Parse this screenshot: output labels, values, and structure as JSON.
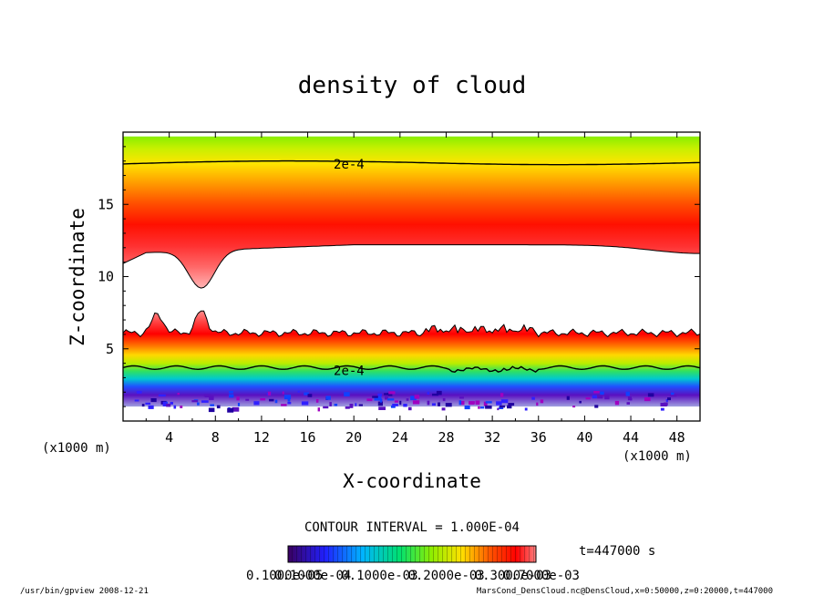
{
  "chart_data": {
    "type": "heatmap",
    "title": "density of cloud",
    "xlabel": "X-coordinate",
    "ylabel": "Z-coordinate",
    "x_unit": "(x1000 m)",
    "y_unit": "(x1000 m)",
    "xlim": [
      0,
      50
    ],
    "ylim": [
      0,
      20
    ],
    "x_ticks": [
      4,
      8,
      12,
      16,
      20,
      24,
      28,
      32,
      36,
      40,
      44,
      48
    ],
    "y_ticks": [
      5,
      10,
      15
    ],
    "contour_labels": [
      {
        "text": "2e-4",
        "x": 18,
        "z": 17.8
      },
      {
        "text": "2e-4",
        "x": 18,
        "z": 3.5
      }
    ],
    "contour_interval": "CONTOUR INTERVAL = 1.000E-04",
    "time_label": "t=447000 s",
    "colorbar_range": [
      0.0001,
      0.0007
    ],
    "colorbar_tick_labels": [
      "0.1000e-05",
      "0.1000e-04",
      "0.1000e-03",
      "0.2000e-03",
      "0.3000e-03",
      "0.7000e-03"
    ],
    "colormap": [
      "#3a0060",
      "#1a1aff",
      "#00b4ff",
      "#00e070",
      "#90ee00",
      "#ffe000",
      "#ff5000",
      "#ff0000",
      "#ff8080"
    ],
    "bands": {
      "upper_layer": {
        "top_z": 19.7,
        "bottom_z": 12.2,
        "core_z": 14.3,
        "dip_x": 6.8,
        "dip_min_z": 9.6,
        "contour_2e4_z": 17.8
      },
      "lower_layer": {
        "top_z": 6.1,
        "core_z": 5.1,
        "contour_2e4_z": 3.7,
        "bottom_z": 1.0,
        "peaks": [
          {
            "x": 3.0,
            "z": 7.4
          },
          {
            "x": 6.8,
            "z": 7.6
          }
        ]
      }
    }
  },
  "footer": {
    "left": "/usr/bin/gpview  2008-12-21",
    "right": "MarsCond_DensCloud.nc@DensCloud,x=0:50000,z=0:20000,t=447000"
  }
}
